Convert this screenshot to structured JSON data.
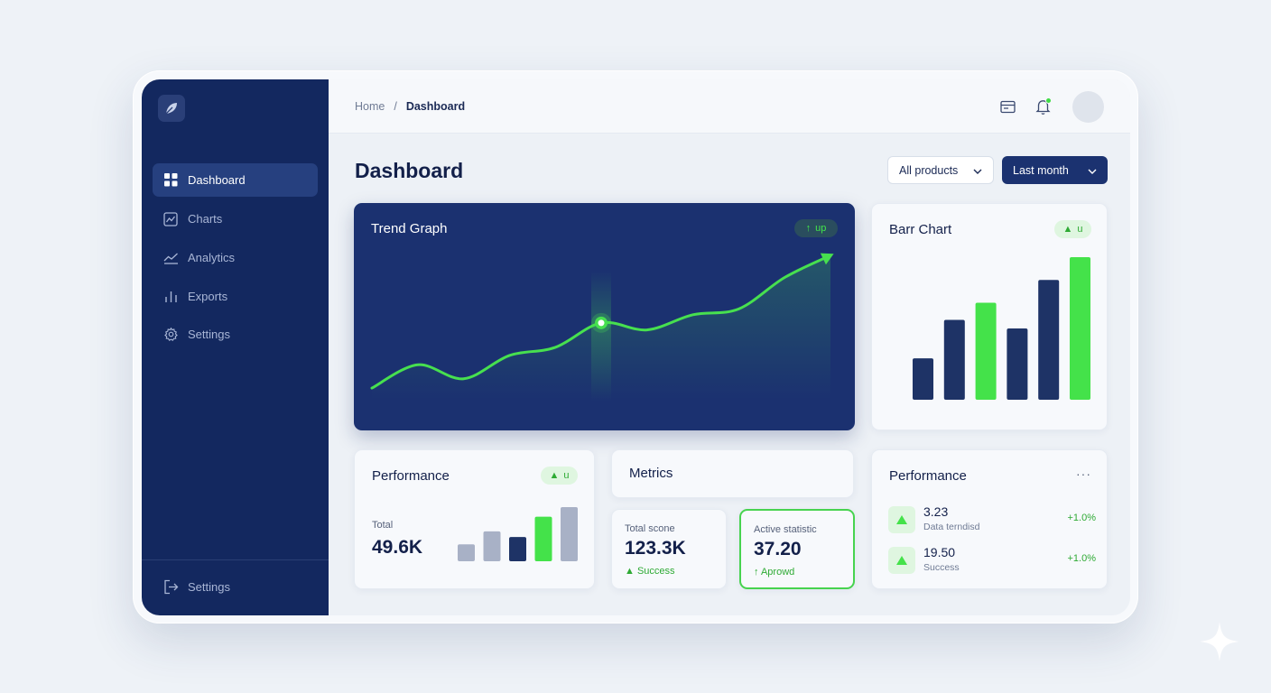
{
  "breadcrumb": {
    "home": "Home",
    "separator": "/",
    "current": "Dashboard"
  },
  "sidebar": {
    "logo_icon": "leaf-icon",
    "items": [
      {
        "label": "Dashboard",
        "icon": "grid-icon",
        "active": true
      },
      {
        "label": "Charts",
        "icon": "chart-box-icon",
        "active": false
      },
      {
        "label": "Analytics",
        "icon": "trend-line-icon",
        "active": false
      },
      {
        "label": "Exports",
        "icon": "bars-icon",
        "active": false
      },
      {
        "label": "Settings",
        "icon": "gear-icon",
        "active": false
      }
    ],
    "footer_item": {
      "label": "Settings",
      "icon": "logout-icon"
    }
  },
  "header": {
    "icons": [
      "card-icon",
      "bell-icon"
    ],
    "avatar": "avatar"
  },
  "page": {
    "title": "Dashboard",
    "filter_products": "All products",
    "filter_period": "Last month"
  },
  "colors": {
    "navy": "#13285f",
    "accent_green": "#47e04f",
    "bar_navy": "#1e3366",
    "bar_gray": "#a8b1c6",
    "bar_green": "#44e24a"
  },
  "trend_card": {
    "title": "Trend Graph",
    "badge": "up",
    "chart_data": {
      "type": "line",
      "x": [
        0,
        1,
        2,
        3,
        4,
        5,
        6,
        7,
        8,
        9,
        10
      ],
      "values": [
        10,
        30,
        18,
        38,
        45,
        66,
        60,
        73,
        78,
        105,
        124
      ],
      "highlight_index": 5
    }
  },
  "bar_card": {
    "title": "Barr Chart",
    "badge": "u",
    "chart_data": {
      "type": "bar",
      "values": [
        29,
        56,
        68,
        50,
        84,
        100
      ],
      "colors": [
        "navy",
        "navy",
        "green",
        "navy",
        "navy",
        "green"
      ]
    }
  },
  "performance_card": {
    "title": "Performance",
    "badge": "u",
    "total_label": "Total",
    "total_value": "49.6K",
    "chart_data": {
      "type": "bar",
      "values": [
        30,
        53,
        43,
        79,
        96
      ],
      "colors": [
        "gray",
        "gray",
        "navy",
        "green",
        "gray"
      ]
    }
  },
  "metrics_card": {
    "title": "Metrics"
  },
  "stats": [
    {
      "label": "Total scone",
      "value": "123.3K",
      "sub": "Success",
      "sub_icon": "triangle-up-icon"
    },
    {
      "label": "Active statistic",
      "value": "37.20",
      "sub": "Aprowd",
      "sub_icon": "arrow-up-icon"
    }
  ],
  "performance_list": {
    "title": "Performance",
    "more": "···",
    "rows": [
      {
        "value": "3.23",
        "desc": "Data terndisd",
        "change": "+1.0%"
      },
      {
        "value": "19.50",
        "desc": "Success",
        "change": "+1.0%"
      }
    ]
  }
}
